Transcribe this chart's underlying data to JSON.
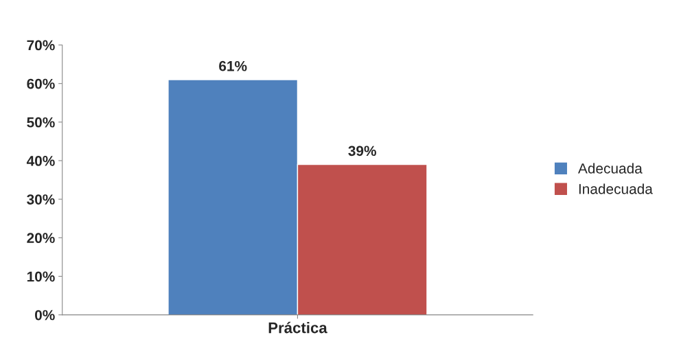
{
  "chart_data": {
    "type": "bar",
    "categories": [
      "Práctica"
    ],
    "series": [
      {
        "name": "Adecuada",
        "color": "#4f81bd",
        "values": [
          61
        ],
        "value_labels": [
          "61%"
        ]
      },
      {
        "name": "Inadecuada",
        "color": "#c0504d",
        "values": [
          39
        ],
        "value_labels": [
          "39%"
        ]
      }
    ],
    "ylim": [
      0,
      70
    ],
    "yticks": [
      {
        "value": 0,
        "label": "0%"
      },
      {
        "value": 10,
        "label": "10%"
      },
      {
        "value": 20,
        "label": "20%"
      },
      {
        "value": 30,
        "label": "30%"
      },
      {
        "value": 40,
        "label": "40%"
      },
      {
        "value": 50,
        "label": "50%"
      },
      {
        "value": 60,
        "label": "60%"
      },
      {
        "value": 70,
        "label": "70%"
      }
    ],
    "grid": false,
    "legend": "right"
  }
}
